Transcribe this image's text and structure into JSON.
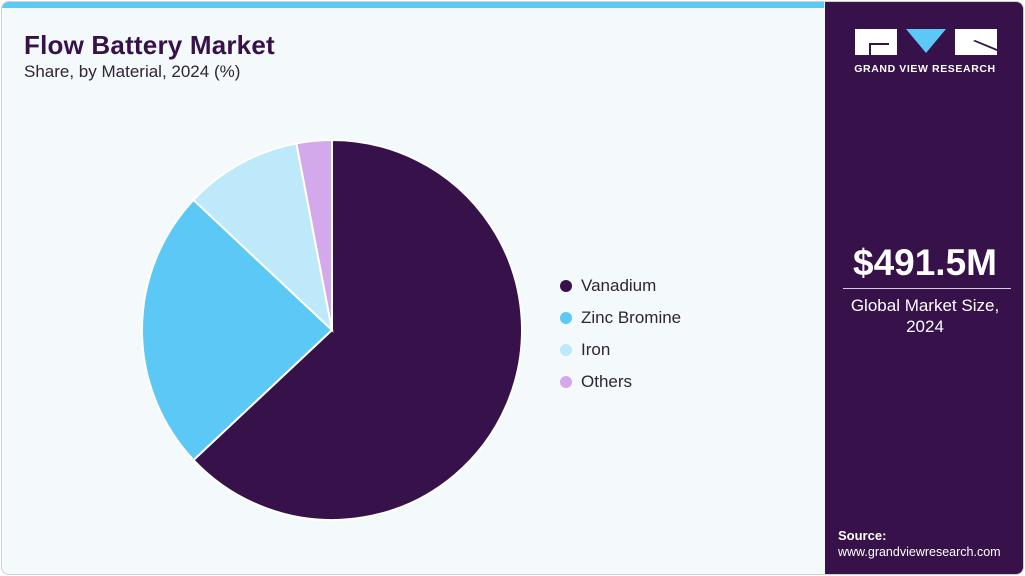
{
  "header": {
    "title": "Flow Battery Market",
    "subtitle": "Share, by Material, 2024 (%)"
  },
  "sidebar": {
    "logo_text": "GRAND VIEW RESEARCH",
    "market_value": "$491.5M",
    "market_label_line1": "Global Market Size,",
    "market_label_line2": "2024",
    "source_label": "Source:",
    "source_url": "www.grandviewresearch.com"
  },
  "colors": {
    "brand": "#37114a",
    "accent": "#5bc8f5",
    "vanadium": "#37114a",
    "zinc_bromine": "#5bc8f5",
    "iron": "#bde9fa",
    "others": "#d4a9ec"
  },
  "legend": [
    {
      "label": "Vanadium",
      "color": "#37114a"
    },
    {
      "label": "Zinc Bromine",
      "color": "#5bc8f5"
    },
    {
      "label": "Iron",
      "color": "#bde9fa"
    },
    {
      "label": "Others",
      "color": "#d4a9ec"
    }
  ],
  "chart_data": {
    "type": "pie",
    "title": "Flow Battery Market",
    "subtitle": "Share, by Material, 2024 (%)",
    "categories": [
      "Vanadium",
      "Zinc Bromine",
      "Iron",
      "Others"
    ],
    "values": [
      63,
      24,
      10,
      3
    ],
    "colors": [
      "#37114a",
      "#5bc8f5",
      "#bde9fa",
      "#d4a9ec"
    ],
    "start_angle": "12 o'clock, clockwise",
    "legend_position": "right",
    "data_labels": false
  }
}
